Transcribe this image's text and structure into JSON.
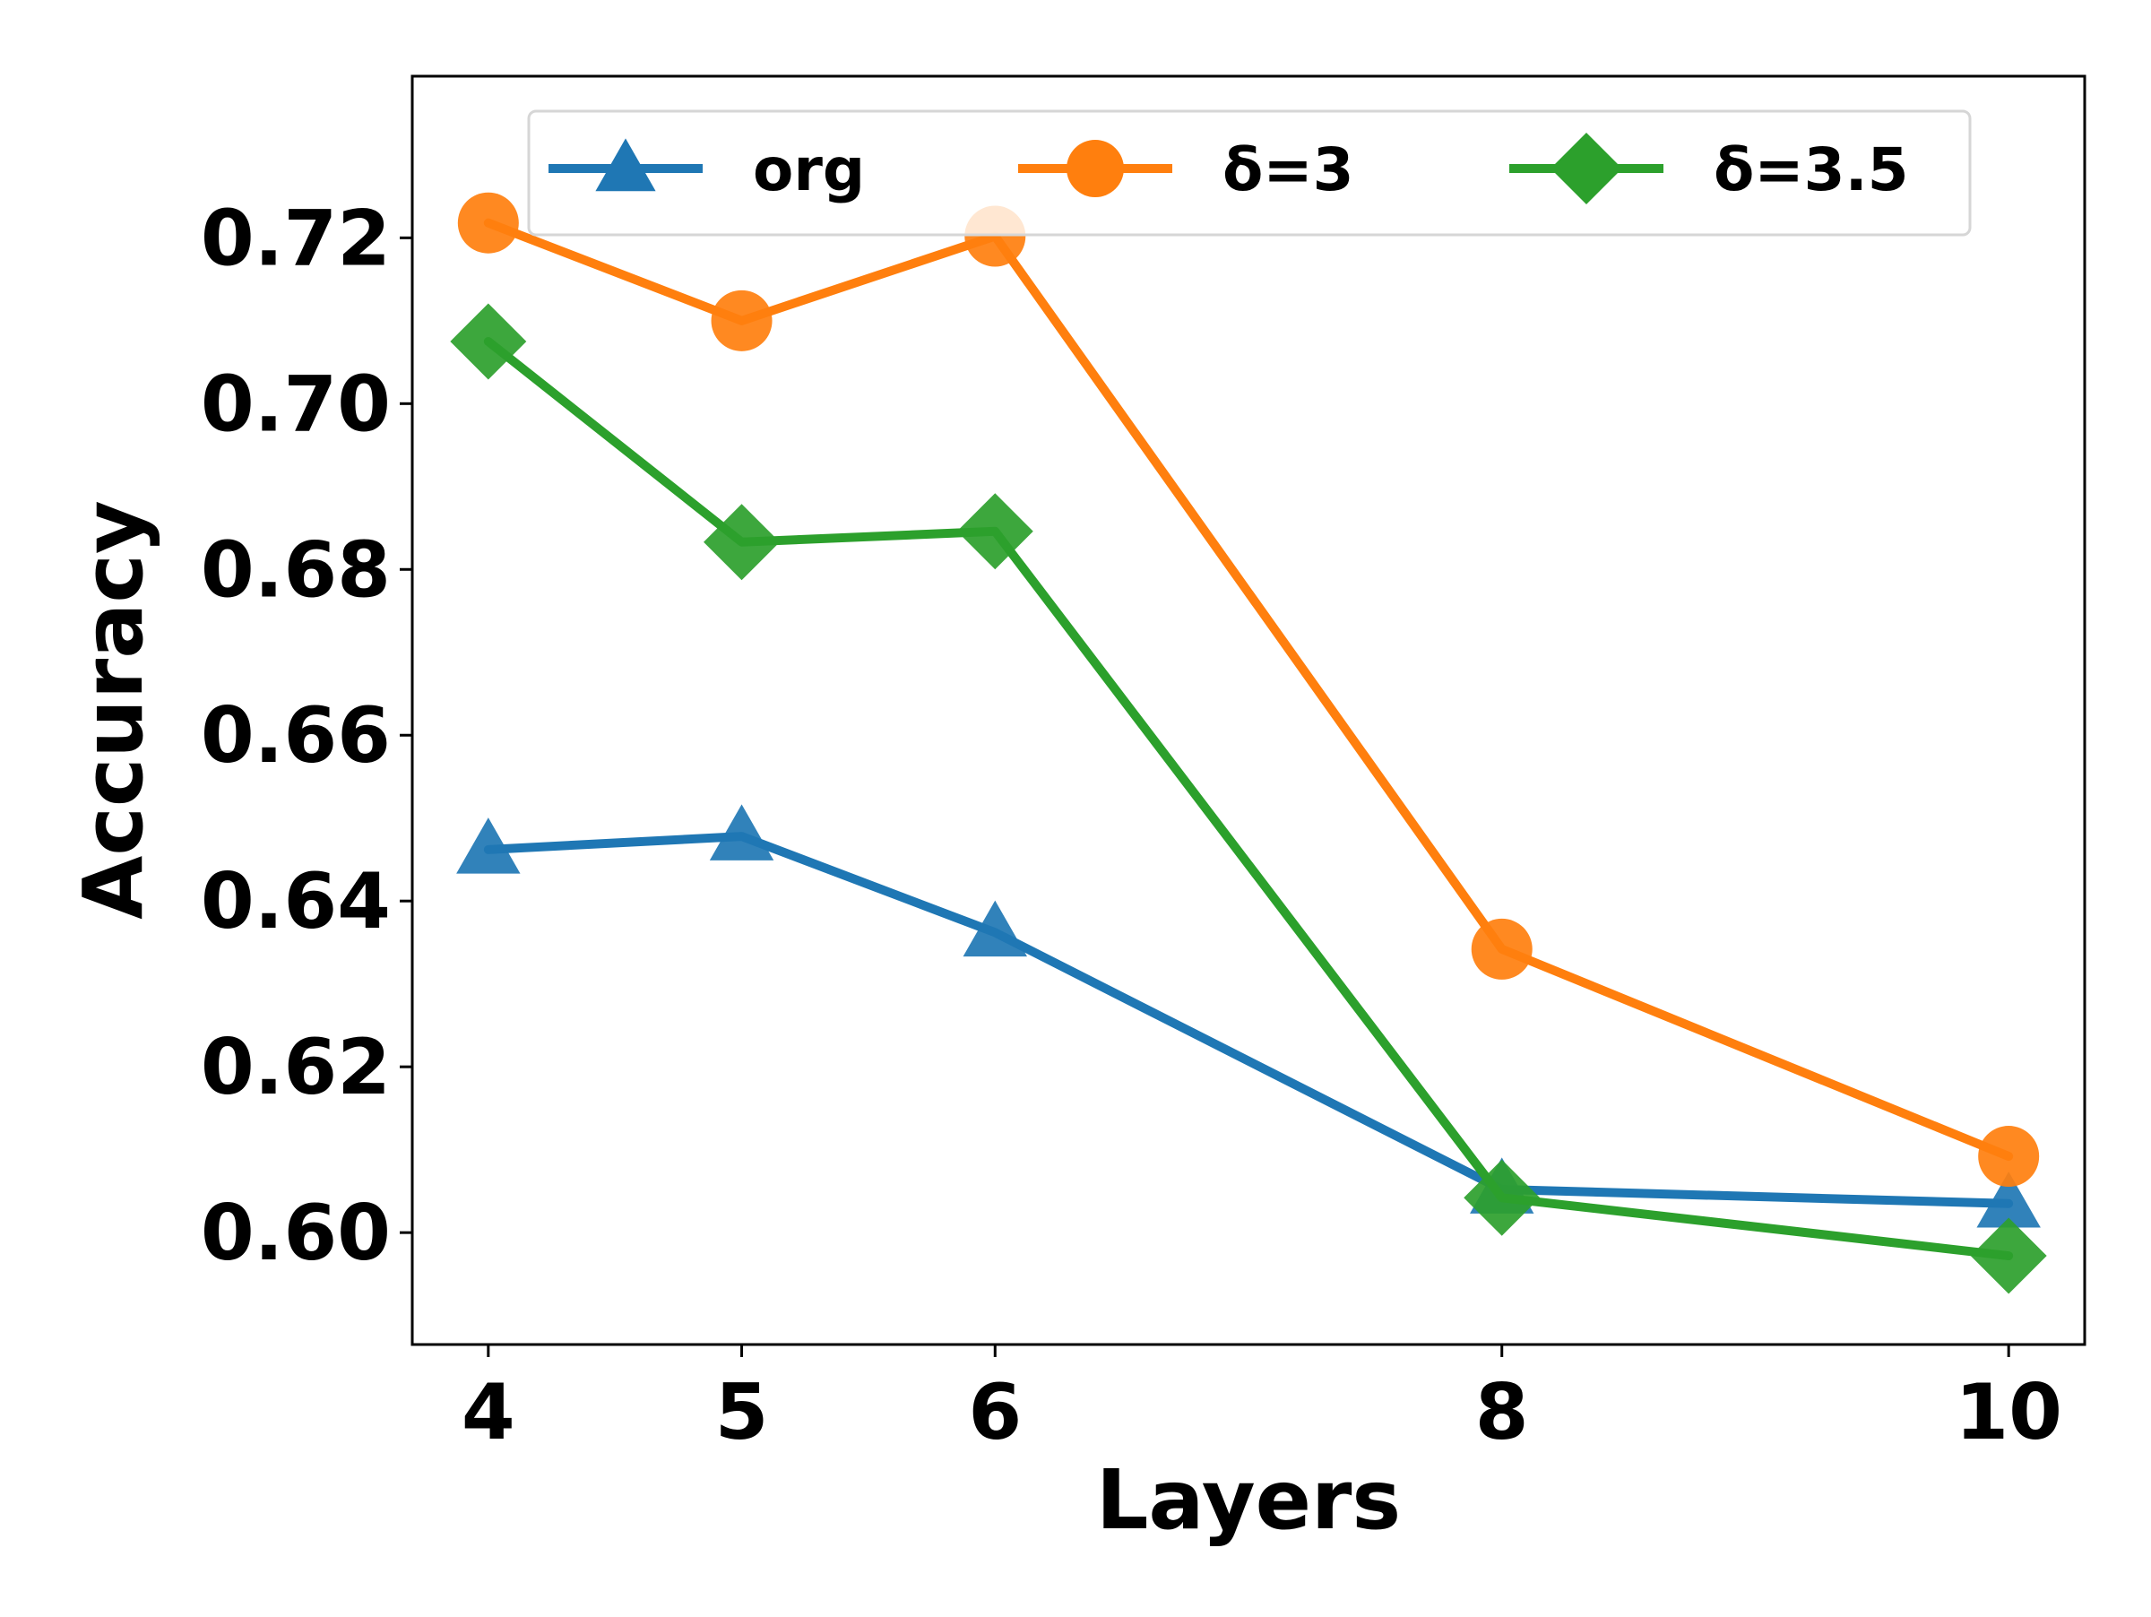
{
  "chart_data": {
    "type": "line",
    "title": "",
    "xlabel": "Layers",
    "ylabel": "Accuracy",
    "x": [
      4,
      5,
      6,
      8,
      10
    ],
    "x_tick_labels": [
      "4",
      "5",
      "6",
      "8",
      "10"
    ],
    "xlim": [
      3.7,
      10.3
    ],
    "y_ticks": [
      0.6,
      0.62,
      0.64,
      0.66,
      0.68,
      0.7,
      0.72
    ],
    "y_tick_labels": [
      "0.60",
      "0.62",
      "0.64",
      "0.66",
      "0.68",
      "0.70",
      "0.72"
    ],
    "ylim": [
      0.5865,
      0.7395
    ],
    "grid": false,
    "legend_position": "top, 3 columns",
    "series": [
      {
        "name": "org",
        "marker": "triangle",
        "color": "#1f77b4",
        "values": [
          0.6462,
          0.6478,
          0.6362,
          0.6052,
          0.6035
        ]
      },
      {
        "name": "δ=3",
        "marker": "circle",
        "color": "#ff7f0e",
        "values": [
          0.7218,
          0.71,
          0.7202,
          0.6342,
          0.6092
        ]
      },
      {
        "name": "δ=3.5",
        "marker": "diamond",
        "color": "#2ca02c",
        "values": [
          0.7075,
          0.6833,
          0.6846,
          0.6042,
          0.5972
        ]
      }
    ]
  }
}
